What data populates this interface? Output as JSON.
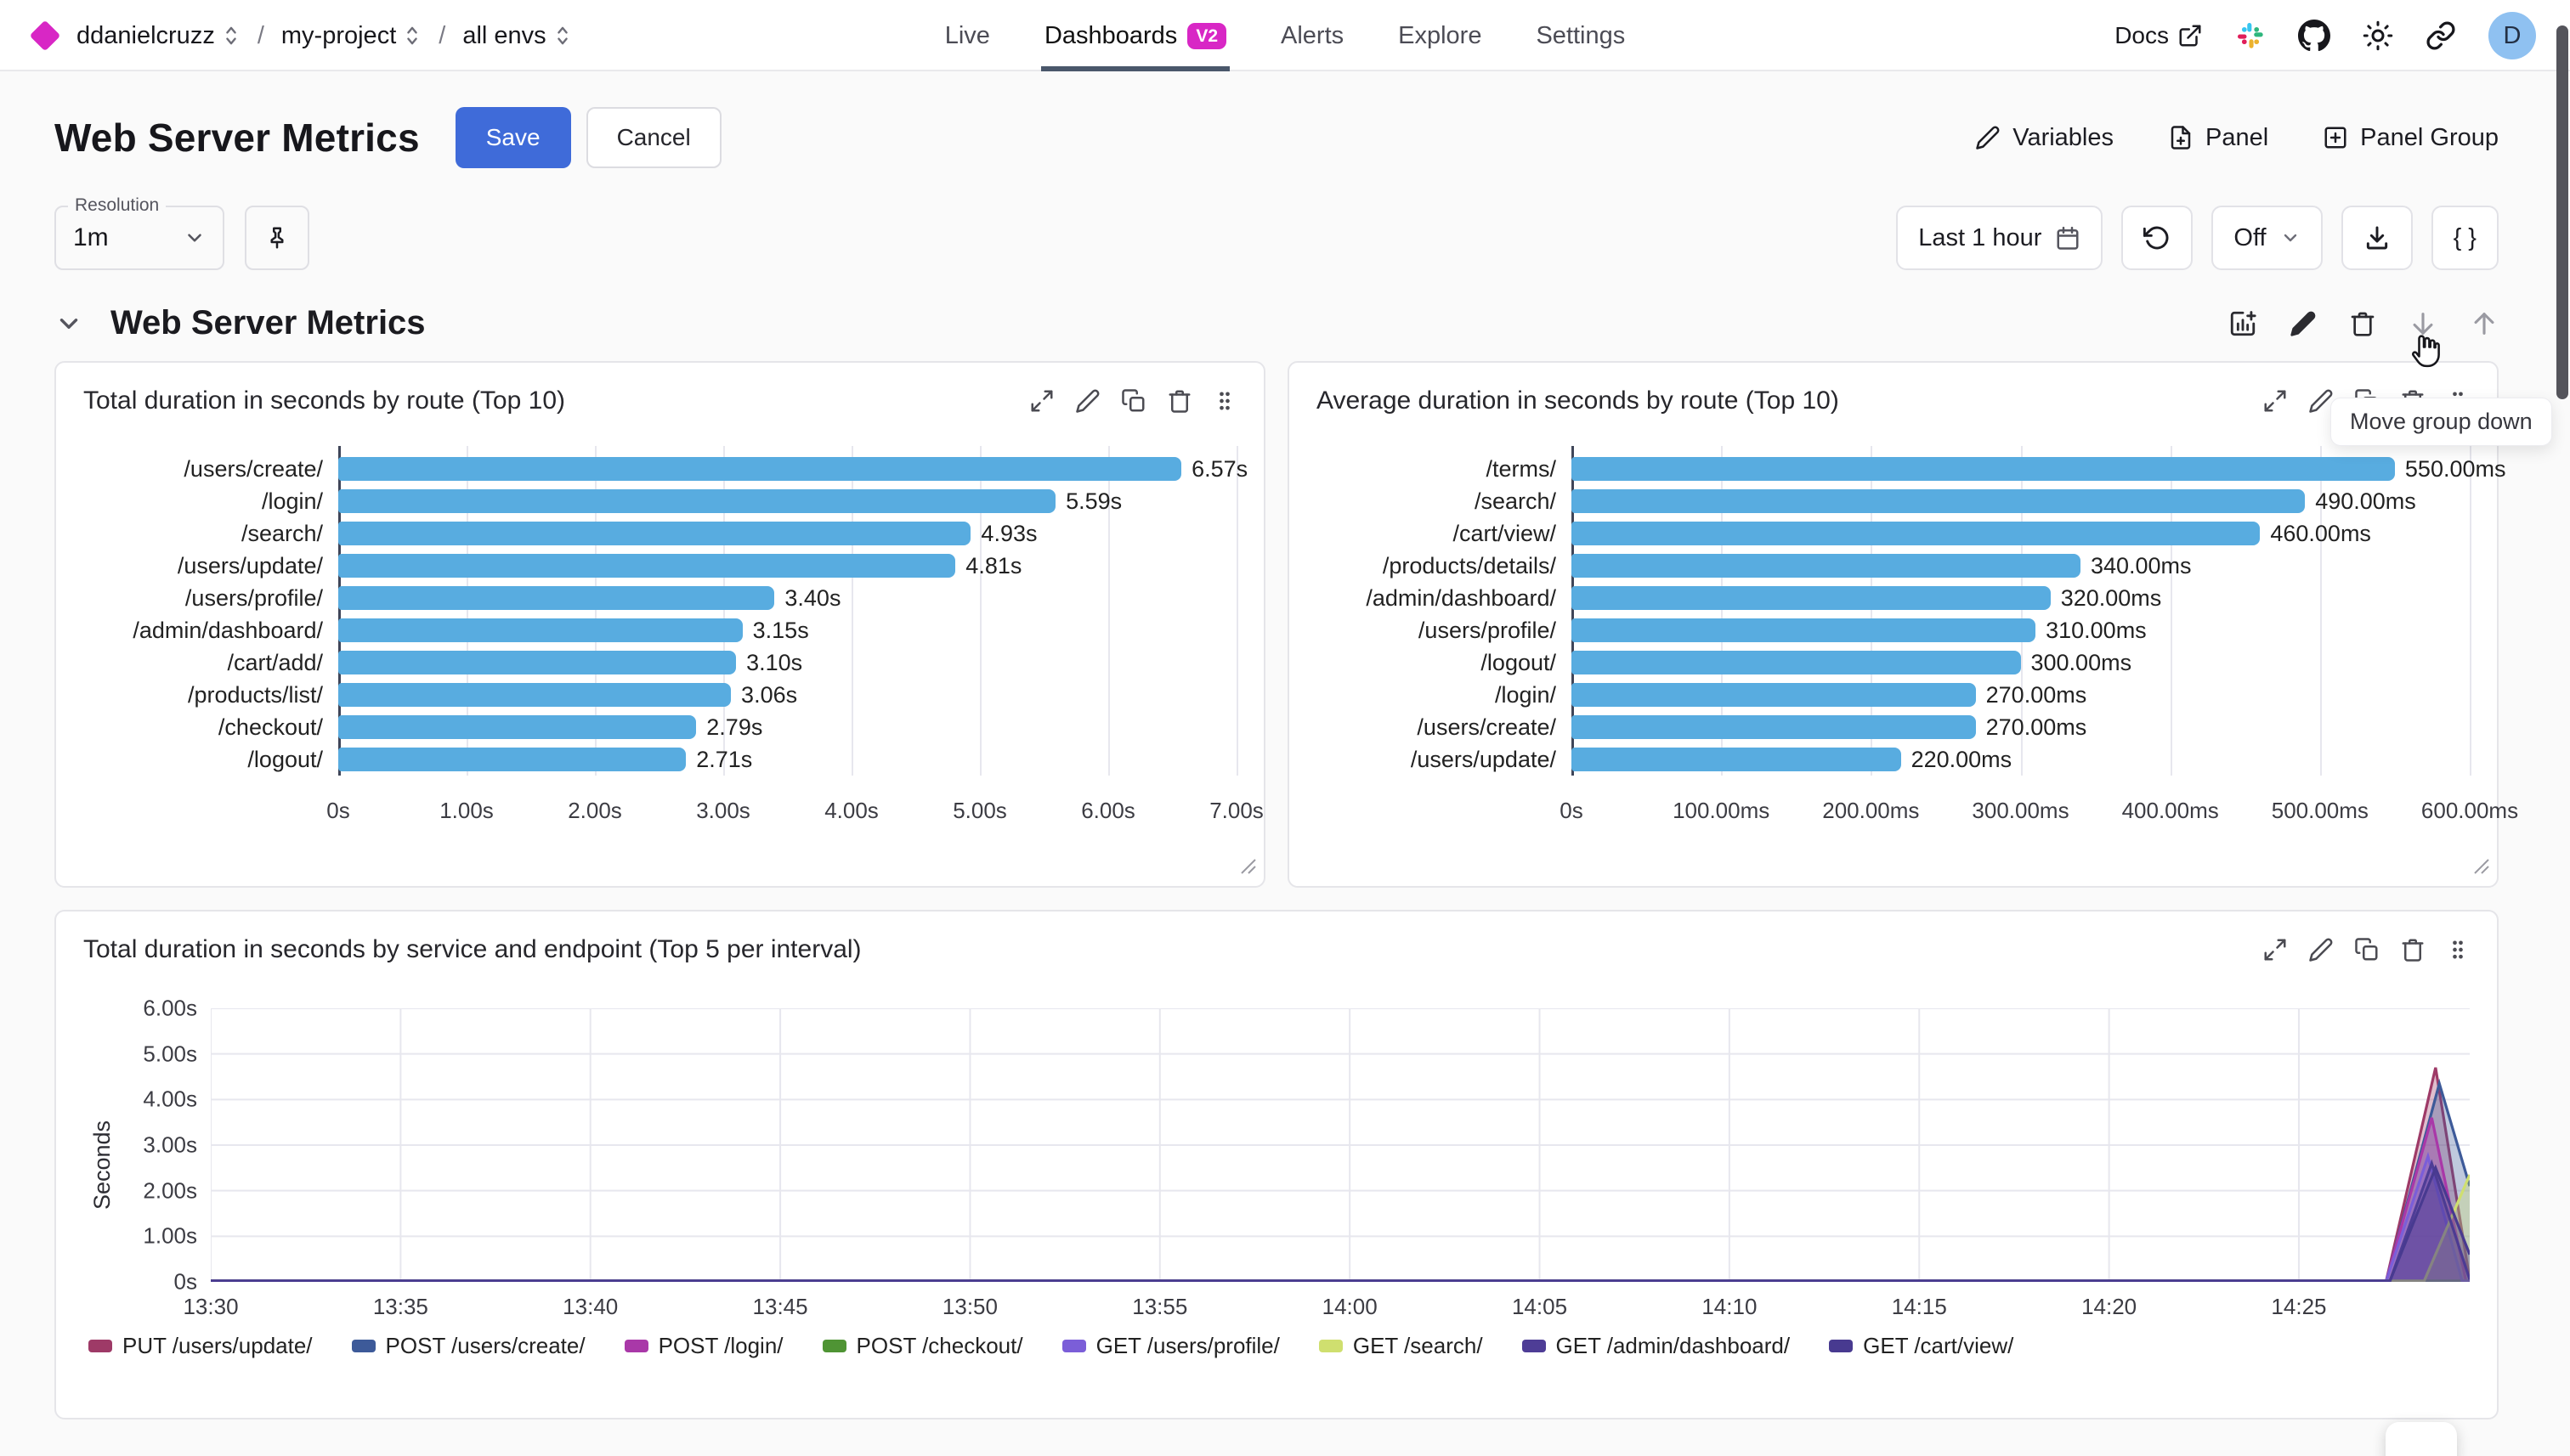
{
  "brand": {
    "org": "ddanielcruzz",
    "project": "my-project",
    "env": "all envs",
    "separator": "/"
  },
  "nav": {
    "items": [
      {
        "label": "Live"
      },
      {
        "label": "Dashboards",
        "badge": "V2",
        "active": true
      },
      {
        "label": "Alerts"
      },
      {
        "label": "Explore"
      },
      {
        "label": "Settings"
      }
    ],
    "docs": "Docs",
    "avatar_initial": "D"
  },
  "toolbar": {
    "page_title": "Web Server Metrics",
    "save": "Save",
    "cancel": "Cancel",
    "variables": "Variables",
    "panel": "Panel",
    "panel_group": "Panel Group"
  },
  "controls": {
    "resolution_label": "Resolution",
    "resolution_value": "1m",
    "time_range": "Last 1 hour",
    "refresh_interval": "Off",
    "code_button": "{ }",
    "tooltip": "Move group down"
  },
  "group": {
    "title": "Web Server Metrics"
  },
  "colors": {
    "accent_blue": "#3f6bd9",
    "brand_magenta": "#d827c5",
    "bar_blue": "#58ace0",
    "nav_underline": "#4a576b"
  },
  "chart_data": [
    {
      "type": "bar",
      "orientation": "horizontal",
      "panel_title": "Total duration in seconds by route (Top 10)",
      "categories": [
        "/users/create/",
        "/login/",
        "/search/",
        "/users/update/",
        "/users/profile/",
        "/admin/dashboard/",
        "/cart/add/",
        "/products/list/",
        "/checkout/",
        "/logout/"
      ],
      "values": [
        6.57,
        5.59,
        4.93,
        4.81,
        3.4,
        3.15,
        3.1,
        3.06,
        2.79,
        2.71
      ],
      "value_labels": [
        "6.57s",
        "5.59s",
        "4.93s",
        "4.81s",
        "3.40s",
        "3.15s",
        "3.10s",
        "3.06s",
        "2.79s",
        "2.71s"
      ],
      "xlim": [
        0,
        7
      ],
      "x_ticks": [
        "0s",
        "1.00s",
        "2.00s",
        "3.00s",
        "4.00s",
        "5.00s",
        "6.00s",
        "7.00s"
      ],
      "bar_color": "#58ace0",
      "grid": true
    },
    {
      "type": "bar",
      "orientation": "horizontal",
      "panel_title": "Average duration in seconds by route (Top 10)",
      "categories": [
        "/terms/",
        "/search/",
        "/cart/view/",
        "/products/details/",
        "/admin/dashboard/",
        "/users/profile/",
        "/logout/",
        "/login/",
        "/users/create/",
        "/users/update/"
      ],
      "values": [
        550,
        490,
        460,
        340,
        320,
        310,
        300,
        270,
        270,
        220
      ],
      "value_labels": [
        "550.00ms",
        "490.00ms",
        "460.00ms",
        "340.00ms",
        "320.00ms",
        "310.00ms",
        "300.00ms",
        "270.00ms",
        "270.00ms",
        "220.00ms"
      ],
      "xlim": [
        0,
        600
      ],
      "x_ticks": [
        "0s",
        "100.00ms",
        "200.00ms",
        "300.00ms",
        "400.00ms",
        "500.00ms",
        "600.00ms"
      ],
      "bar_color": "#58ace0",
      "grid": true
    },
    {
      "type": "area",
      "panel_title": "Total duration in seconds by service and endpoint (Top 5 per interval)",
      "ylabel": "Seconds",
      "ylim": [
        0,
        6
      ],
      "y_ticks": [
        "0s",
        "1.00s",
        "2.00s",
        "3.00s",
        "4.00s",
        "5.00s",
        "6.00s"
      ],
      "x_ticks": [
        "13:30",
        "13:35",
        "13:40",
        "13:45",
        "13:50",
        "13:55",
        "14:00",
        "14:05",
        "14:10",
        "14:15",
        "14:20",
        "14:25"
      ],
      "x_tick_interval_minutes": 5,
      "x_domain_minutes": [
        0,
        59.5
      ],
      "grid": true,
      "legend_position": "bottom",
      "series": [
        {
          "name": "PUT /users/update/",
          "color": "#9e3a67",
          "points": [
            [
              0,
              0.02
            ],
            [
              57.3,
              0.02
            ],
            [
              58.6,
              4.7
            ],
            [
              59.5,
              0.05
            ]
          ]
        },
        {
          "name": "POST /users/create/",
          "color": "#3d5a99",
          "points": [
            [
              0,
              0.02
            ],
            [
              57.3,
              0.02
            ],
            [
              58.7,
              4.35
            ],
            [
              59.5,
              2.1
            ]
          ]
        },
        {
          "name": "POST /login/",
          "color": "#a938a8",
          "points": [
            [
              0,
              0.02
            ],
            [
              57.3,
              0.02
            ],
            [
              58.5,
              3.6
            ],
            [
              59.4,
              0.02
            ],
            [
              59.5,
              0.02
            ]
          ]
        },
        {
          "name": "POST /checkout/",
          "color": "#4f9434",
          "points": [
            [
              0,
              0.02
            ],
            [
              59.5,
              0.02
            ]
          ]
        },
        {
          "name": "GET /users/profile/",
          "color": "#7b5ed8",
          "points": [
            [
              0,
              0.02
            ],
            [
              57.3,
              0.02
            ],
            [
              58.4,
              2.75
            ],
            [
              59.3,
              0.02
            ],
            [
              59.5,
              0.02
            ]
          ]
        },
        {
          "name": "GET /search/",
          "color": "#cfdf6f",
          "points": [
            [
              0,
              0.02
            ],
            [
              58.3,
              0.02
            ],
            [
              59.5,
              2.35
            ]
          ]
        },
        {
          "name": "GET /admin/dashboard/",
          "color": "#4e3d96",
          "points": [
            [
              0,
              0.02
            ],
            [
              57.4,
              0.02
            ],
            [
              58.5,
              2.6
            ],
            [
              59.5,
              0.05
            ]
          ]
        },
        {
          "name": "GET /cart/view/",
          "color": "#483a90",
          "points": [
            [
              0,
              0.02
            ],
            [
              57.4,
              0.02
            ],
            [
              58.6,
              2.5
            ],
            [
              59.5,
              0.6
            ]
          ]
        }
      ]
    }
  ]
}
